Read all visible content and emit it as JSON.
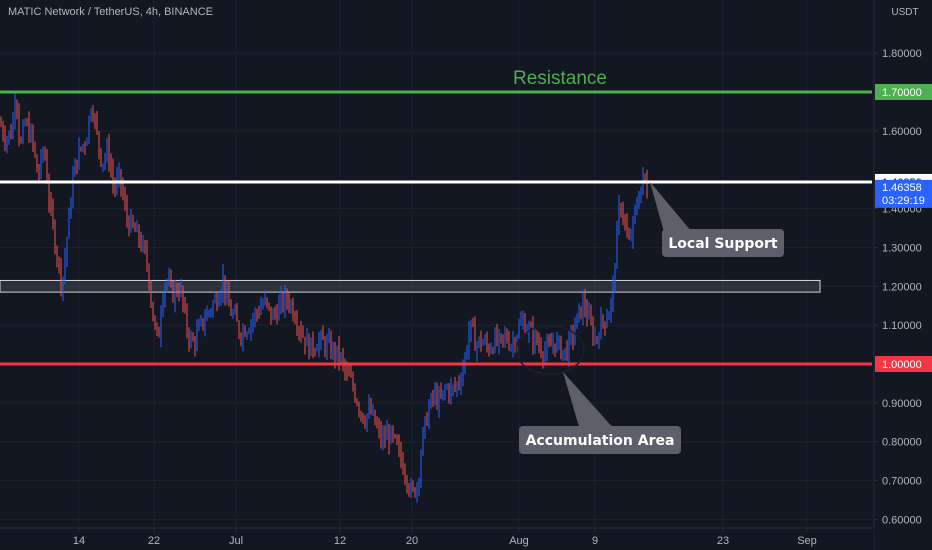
{
  "header": {
    "symbol_title": "MATIC Network / TetherUS, 4h, BINANCE"
  },
  "chart_data": {
    "type": "candlestick",
    "quote_currency": "USDT",
    "y_ticks": [
      "1.80000",
      "1.60000",
      "1.40000",
      "1.30000",
      "1.20000",
      "1.10000",
      "0.90000",
      "0.80000",
      "0.70000",
      "0.60000"
    ],
    "y_tick_values": [
      1.8,
      1.6,
      1.4,
      1.3,
      1.2,
      1.1,
      0.9,
      0.8,
      0.7,
      0.6
    ],
    "x_ticks": [
      "14",
      "22",
      "Jul",
      "12",
      "20",
      "Aug",
      "9",
      "23",
      "Sep"
    ],
    "ylim": [
      0.58,
      1.92
    ],
    "price_levels": [
      {
        "name": "Resistance",
        "label": "Resistance",
        "price": 1.7,
        "price_label": "1.70000",
        "color": "#4caf50"
      },
      {
        "name": "local-support",
        "price": 1.4685,
        "price_label": "1.46850",
        "color": "#ffffff"
      },
      {
        "name": "support",
        "price": 1.0,
        "price_label": "1.00000",
        "color": "#f23645"
      }
    ],
    "zone": {
      "low": 1.185,
      "high": 1.215
    },
    "last_price": {
      "price": 1.46358,
      "price_label": "1.46358",
      "countdown": "03:29:19",
      "color": "#2962ff"
    },
    "annotations": [
      {
        "text": "Local Support"
      },
      {
        "text": "Accumulation Area"
      }
    ],
    "price_path": [
      [
        0,
        1.62
      ],
      [
        6,
        1.58
      ],
      [
        12,
        1.6
      ],
      [
        16,
        1.72
      ],
      [
        20,
        1.55
      ],
      [
        25,
        1.62
      ],
      [
        32,
        1.58
      ],
      [
        38,
        1.48
      ],
      [
        44,
        1.56
      ],
      [
        50,
        1.4
      ],
      [
        56,
        1.3
      ],
      [
        62,
        1.2
      ],
      [
        68,
        1.35
      ],
      [
        74,
        1.5
      ],
      [
        80,
        1.55
      ],
      [
        86,
        1.58
      ],
      [
        92,
        1.68
      ],
      [
        96,
        1.6
      ],
      [
        102,
        1.52
      ],
      [
        108,
        1.55
      ],
      [
        114,
        1.45
      ],
      [
        120,
        1.48
      ],
      [
        126,
        1.38
      ],
      [
        132,
        1.35
      ],
      [
        140,
        1.32
      ],
      [
        148,
        1.25
      ],
      [
        153,
        1.12
      ],
      [
        158,
        1.05
      ],
      [
        162,
        1.18
      ],
      [
        166,
        1.22
      ],
      [
        172,
        1.18
      ],
      [
        180,
        1.2
      ],
      [
        186,
        1.1
      ],
      [
        192,
        1.05
      ],
      [
        198,
        1.08
      ],
      [
        205,
        1.12
      ],
      [
        212,
        1.15
      ],
      [
        218,
        1.18
      ],
      [
        223,
        1.22
      ],
      [
        228,
        1.15
      ],
      [
        234,
        1.12
      ],
      [
        240,
        1.08
      ],
      [
        248,
        1.1
      ],
      [
        256,
        1.13
      ],
      [
        264,
        1.16
      ],
      [
        272,
        1.12
      ],
      [
        280,
        1.15
      ],
      [
        288,
        1.17
      ],
      [
        295,
        1.13
      ],
      [
        302,
        1.08
      ],
      [
        310,
        1.04
      ],
      [
        318,
        1.06
      ],
      [
        326,
        1.05
      ],
      [
        334,
        1.03
      ],
      [
        340,
        1.02
      ],
      [
        346,
        0.97
      ],
      [
        352,
        0.95
      ],
      [
        358,
        0.9
      ],
      [
        364,
        0.86
      ],
      [
        370,
        0.88
      ],
      [
        376,
        0.84
      ],
      [
        382,
        0.8
      ],
      [
        388,
        0.82
      ],
      [
        394,
        0.8
      ],
      [
        400,
        0.76
      ],
      [
        406,
        0.72
      ],
      [
        412,
        0.66
      ],
      [
        418,
        0.7
      ],
      [
        422,
        0.8
      ],
      [
        428,
        0.88
      ],
      [
        434,
        0.92
      ],
      [
        440,
        0.9
      ],
      [
        446,
        0.94
      ],
      [
        452,
        0.93
      ],
      [
        458,
        0.95
      ],
      [
        464,
        1.0
      ],
      [
        470,
        1.1
      ],
      [
        476,
        1.05
      ],
      [
        482,
        1.06
      ],
      [
        488,
        1.04
      ],
      [
        494,
        1.06
      ],
      [
        500,
        1.05
      ],
      [
        506,
        1.07
      ],
      [
        512,
        1.05
      ],
      [
        518,
        1.09
      ],
      [
        524,
        1.11
      ],
      [
        530,
        1.08
      ],
      [
        536,
        1.06
      ],
      [
        542,
        1.04
      ],
      [
        548,
        1.03
      ],
      [
        554,
        1.06
      ],
      [
        560,
        1.04
      ],
      [
        566,
        1.03
      ],
      [
        572,
        1.07
      ],
      [
        578,
        1.12
      ],
      [
        584,
        1.16
      ],
      [
        590,
        1.1
      ],
      [
        596,
        1.06
      ],
      [
        600,
        1.1
      ],
      [
        606,
        1.12
      ],
      [
        612,
        1.16
      ],
      [
        616,
        1.3
      ],
      [
        620,
        1.42
      ],
      [
        624,
        1.38
      ],
      [
        628,
        1.3
      ],
      [
        632,
        1.34
      ],
      [
        636,
        1.4
      ],
      [
        640,
        1.45
      ],
      [
        644,
        1.48
      ],
      [
        648,
        1.44
      ]
    ]
  }
}
